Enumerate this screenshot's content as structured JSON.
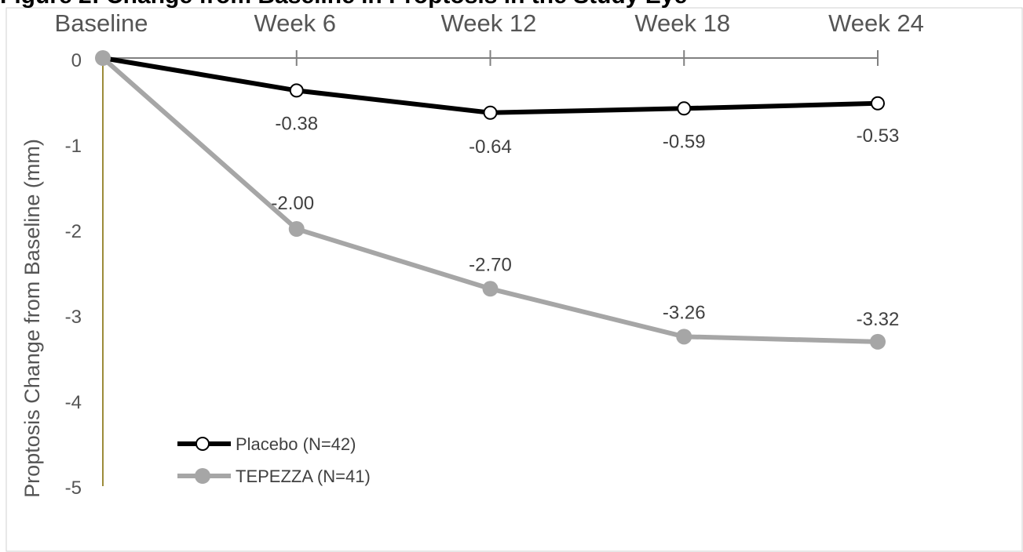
{
  "chart_data": {
    "type": "line",
    "title": "Figure 2: Change from Baseline in Proptosis in the Study Eye",
    "xlabel": "",
    "ylabel": "Proptosis Change from Baseline (mm)",
    "categories": [
      "Baseline",
      "Week 6",
      "Week 12",
      "Week 18",
      "Week 24"
    ],
    "y_ticks": [
      "0",
      "-1",
      "-2",
      "-3",
      "-4",
      "-5"
    ],
    "ylim": [
      -5,
      0
    ],
    "grid": false,
    "legend_placement": "bottom-left",
    "series": [
      {
        "name": "Placebo (N=42)",
        "values": [
          0,
          -0.38,
          -0.64,
          -0.59,
          -0.53
        ],
        "labels": [
          "",
          "-0.38",
          "-0.64",
          "-0.59",
          "-0.53"
        ],
        "color": "#000000",
        "marker": "open-circle"
      },
      {
        "name": "TEPEZZA (N=41)",
        "values": [
          0,
          -2.0,
          -2.7,
          -3.26,
          -3.32
        ],
        "labels": [
          "",
          "-2.00",
          "-2.70",
          "-3.26",
          "-3.32"
        ],
        "color": "#a6a6a6",
        "marker": "filled-circle"
      }
    ],
    "colors": {
      "x_axis": "#808080",
      "y_axis": "#9c8c3a"
    }
  }
}
